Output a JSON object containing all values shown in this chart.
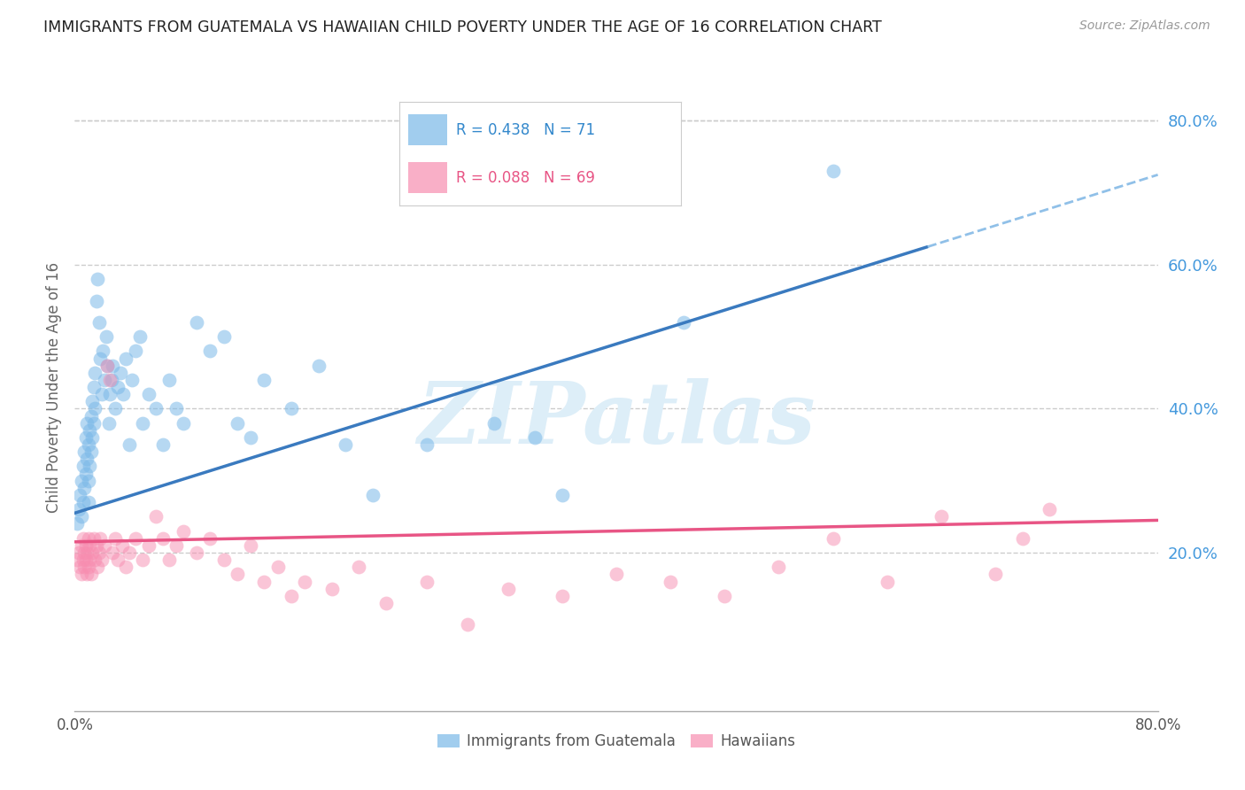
{
  "title": "IMMIGRANTS FROM GUATEMALA VS HAWAIIAN CHILD POVERTY UNDER THE AGE OF 16 CORRELATION CHART",
  "source": "Source: ZipAtlas.com",
  "ylabel": "Child Poverty Under the Age of 16",
  "ytick_values": [
    0.2,
    0.4,
    0.6,
    0.8
  ],
  "xlim": [
    0.0,
    0.8
  ],
  "ylim": [
    -0.02,
    0.88
  ],
  "legend_blue_r": "R = 0.438",
  "legend_blue_n": "N = 71",
  "legend_pink_r": "R = 0.088",
  "legend_pink_n": "N = 69",
  "legend_label_blue": "Immigrants from Guatemala",
  "legend_label_pink": "Hawaiians",
  "blue_color": "#7ab8e8",
  "pink_color": "#f78db0",
  "blue_line_color": "#3a7abf",
  "pink_line_color": "#e85585",
  "dashed_line_color": "#90c0e8",
  "watermark": "ZIPatlas",
  "watermark_color": "#ddeef8",
  "grid_color": "#cccccc",
  "blue_scatter_x": [
    0.002,
    0.003,
    0.004,
    0.005,
    0.005,
    0.006,
    0.006,
    0.007,
    0.007,
    0.008,
    0.008,
    0.009,
    0.009,
    0.01,
    0.01,
    0.01,
    0.011,
    0.011,
    0.012,
    0.012,
    0.013,
    0.013,
    0.014,
    0.014,
    0.015,
    0.015,
    0.016,
    0.017,
    0.018,
    0.019,
    0.02,
    0.021,
    0.022,
    0.023,
    0.024,
    0.025,
    0.026,
    0.027,
    0.028,
    0.03,
    0.032,
    0.034,
    0.036,
    0.038,
    0.04,
    0.042,
    0.045,
    0.048,
    0.05,
    0.055,
    0.06,
    0.065,
    0.07,
    0.075,
    0.08,
    0.09,
    0.1,
    0.11,
    0.12,
    0.13,
    0.14,
    0.16,
    0.18,
    0.2,
    0.22,
    0.26,
    0.31,
    0.34,
    0.36,
    0.45,
    0.56
  ],
  "blue_scatter_y": [
    0.24,
    0.26,
    0.28,
    0.25,
    0.3,
    0.27,
    0.32,
    0.29,
    0.34,
    0.31,
    0.36,
    0.33,
    0.38,
    0.35,
    0.27,
    0.3,
    0.32,
    0.37,
    0.34,
    0.39,
    0.36,
    0.41,
    0.38,
    0.43,
    0.4,
    0.45,
    0.55,
    0.58,
    0.52,
    0.47,
    0.42,
    0.48,
    0.44,
    0.5,
    0.46,
    0.38,
    0.42,
    0.44,
    0.46,
    0.4,
    0.43,
    0.45,
    0.42,
    0.47,
    0.35,
    0.44,
    0.48,
    0.5,
    0.38,
    0.42,
    0.4,
    0.35,
    0.44,
    0.4,
    0.38,
    0.52,
    0.48,
    0.5,
    0.38,
    0.36,
    0.44,
    0.4,
    0.46,
    0.35,
    0.28,
    0.35,
    0.38,
    0.36,
    0.28,
    0.52,
    0.73
  ],
  "pink_scatter_x": [
    0.002,
    0.003,
    0.004,
    0.005,
    0.005,
    0.006,
    0.006,
    0.007,
    0.007,
    0.008,
    0.008,
    0.009,
    0.009,
    0.01,
    0.01,
    0.011,
    0.011,
    0.012,
    0.013,
    0.014,
    0.015,
    0.016,
    0.017,
    0.018,
    0.019,
    0.02,
    0.022,
    0.024,
    0.026,
    0.028,
    0.03,
    0.032,
    0.035,
    0.038,
    0.04,
    0.045,
    0.05,
    0.055,
    0.06,
    0.065,
    0.07,
    0.075,
    0.08,
    0.09,
    0.1,
    0.11,
    0.12,
    0.13,
    0.14,
    0.15,
    0.16,
    0.17,
    0.19,
    0.21,
    0.23,
    0.26,
    0.29,
    0.32,
    0.36,
    0.4,
    0.44,
    0.48,
    0.52,
    0.56,
    0.6,
    0.64,
    0.68,
    0.7,
    0.72
  ],
  "pink_scatter_y": [
    0.19,
    0.2,
    0.18,
    0.21,
    0.17,
    0.19,
    0.22,
    0.2,
    0.18,
    0.21,
    0.19,
    0.17,
    0.2,
    0.22,
    0.18,
    0.21,
    0.19,
    0.17,
    0.2,
    0.22,
    0.19,
    0.21,
    0.18,
    0.2,
    0.22,
    0.19,
    0.21,
    0.46,
    0.44,
    0.2,
    0.22,
    0.19,
    0.21,
    0.18,
    0.2,
    0.22,
    0.19,
    0.21,
    0.25,
    0.22,
    0.19,
    0.21,
    0.23,
    0.2,
    0.22,
    0.19,
    0.17,
    0.21,
    0.16,
    0.18,
    0.14,
    0.16,
    0.15,
    0.18,
    0.13,
    0.16,
    0.1,
    0.15,
    0.14,
    0.17,
    0.16,
    0.14,
    0.18,
    0.22,
    0.16,
    0.25,
    0.17,
    0.22,
    0.26
  ],
  "blue_line_x0": 0.0,
  "blue_line_x1": 0.63,
  "blue_line_y0": 0.255,
  "blue_line_y1": 0.625,
  "dash_line_x0": 0.63,
  "dash_line_x1": 0.8,
  "dash_line_y0": 0.625,
  "dash_line_y1": 0.725,
  "pink_line_x0": 0.0,
  "pink_line_x1": 0.8,
  "pink_line_y0": 0.215,
  "pink_line_y1": 0.245
}
